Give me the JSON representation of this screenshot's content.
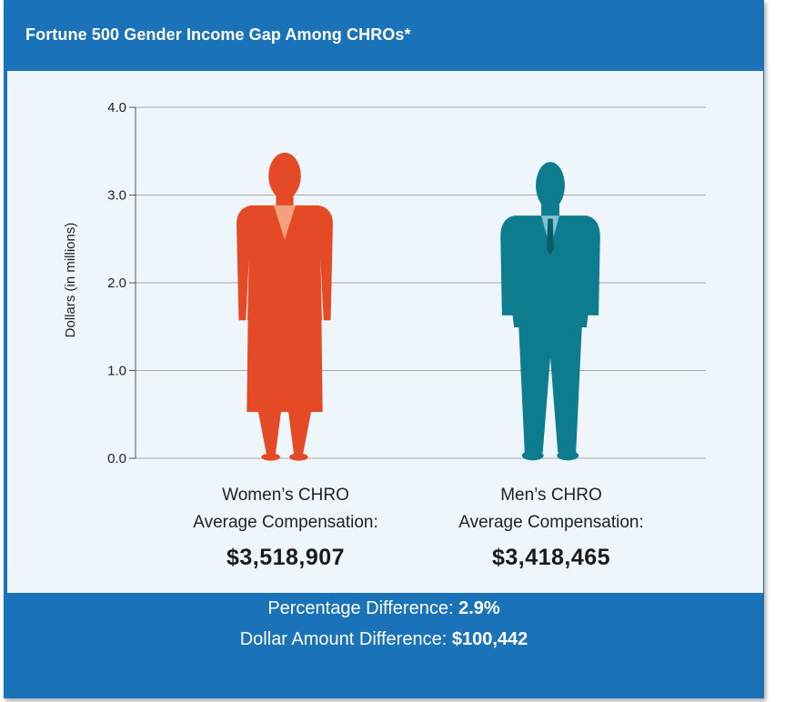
{
  "header": {
    "title": "Fortune 500 Gender Income Gap Among CHROs*"
  },
  "chart_data": {
    "type": "bar",
    "title": "Fortune 500 Gender Income Gap Among CHROs*",
    "ylabel": "Dollars (in millions)",
    "xlabel": "",
    "ylim": [
      0,
      4
    ],
    "yticks": [
      "0.0",
      "1.0",
      "2.0",
      "3.0",
      "4.0"
    ],
    "grid": true,
    "categories": [
      "Women's CHRO",
      "Men's CHRO"
    ],
    "values": [
      3.518907,
      3.418465
    ],
    "colors": [
      "#e34a25",
      "#0e7c8f"
    ]
  },
  "labels": {
    "women_line1": "Women’s CHRO",
    "women_line2": "Average Compensation:",
    "women_value": "$3,518,907",
    "men_line1": "Men’s CHRO",
    "men_line2": "Average Compensation:",
    "men_value": "$3,418,465"
  },
  "footer": {
    "pct_label": "Percentage Difference:",
    "pct_value": "2.9%",
    "dollar_label": "Dollar Amount Difference:",
    "dollar_value": "$100,442"
  },
  "colors": {
    "frame": "#1a73b9",
    "panel": "#eef6fb",
    "women": "#e34a25",
    "men": "#0e7c8f"
  }
}
